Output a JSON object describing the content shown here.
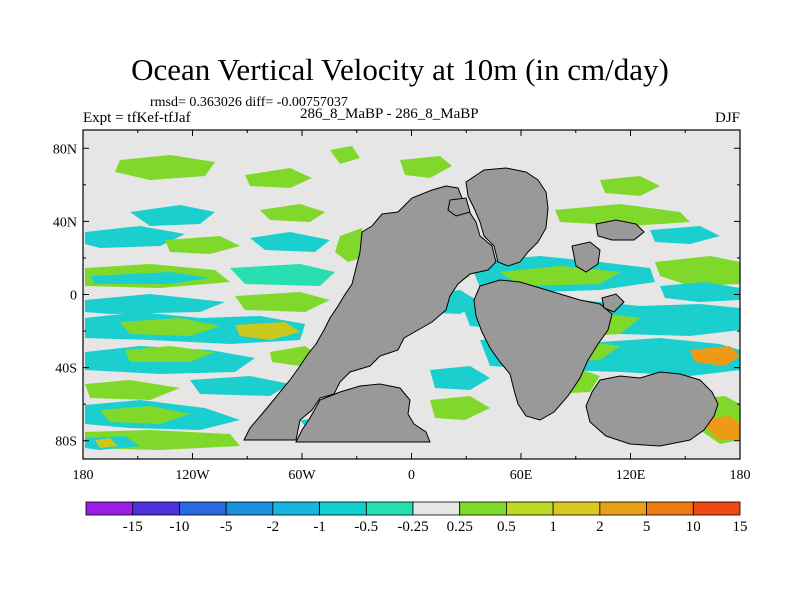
{
  "title": "Ocean Vertical Velocity at 10m (in cm/day)",
  "stats_line": "rmsd= 0.363026 diff= -0.00757037",
  "expt_line": "Expt = tfKef-tfJaf",
  "case_line": "286_8_MaBP - 286_8_MaBP",
  "season": "DJF",
  "colors": {
    "land": "#999999",
    "zero_band": "#e6e6e6",
    "green": "#80d92a",
    "cyan": "#1ccfcf",
    "aqua": "#27dfb0",
    "yellow": "#c8c81e",
    "orange": "#ee9a16"
  },
  "map": {
    "projection": "cylindrical-equidistant",
    "lon_range": [
      -180,
      180
    ],
    "lat_range": [
      -90,
      90
    ],
    "lon_ticks": [
      "180",
      "120W",
      "60W",
      "0",
      "60E",
      "120E",
      "180"
    ],
    "lat_ticks": [
      "80N",
      "40N",
      "0",
      "40S",
      "80S"
    ]
  },
  "colorbar": {
    "labels": [
      "-15",
      "-10",
      "-5",
      "-2",
      "-1",
      "-0.5",
      "-0.25",
      "0.25",
      "0.5",
      "1",
      "2",
      "5",
      "10",
      "15"
    ],
    "colors": [
      "#9a1ee6",
      "#4d32dc",
      "#2a6ae0",
      "#1990de",
      "#16b6de",
      "#14cfd0",
      "#26dfb0",
      "#e6e6e6",
      "#80d92a",
      "#c0d826",
      "#d8c820",
      "#e8a018",
      "#ee7a14",
      "#ec4a12"
    ]
  }
}
